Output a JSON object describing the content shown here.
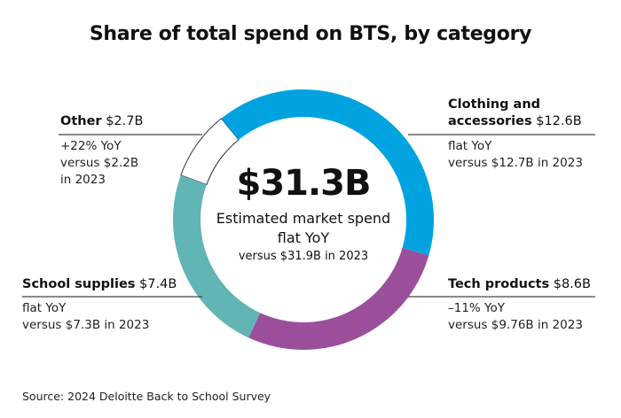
{
  "chart_data": {
    "type": "pie",
    "title": "Share of total spend on BTS, by category",
    "unit": "$B",
    "total": {
      "value": "$31.3B",
      "line1": "Estimated market spend",
      "line2": "flat YoY",
      "line3": "versus $31.9B in 2023"
    },
    "slices": [
      {
        "name": "Clothing and accessories",
        "name_bold_1": "Clothing and",
        "name_bold_2": "accessories",
        "value": 12.6,
        "value_label": "$12.6B",
        "change": "flat YoY",
        "prior": "versus $12.7B in 2023",
        "color": "#00A3E0"
      },
      {
        "name": "Tech products",
        "value": 8.6,
        "value_label": "$8.6B",
        "change": "–11% YoY",
        "prior": "versus $9.76B in 2023",
        "color": "#9B4F9B"
      },
      {
        "name": "School supplies",
        "value": 7.4,
        "value_label": "$7.4B",
        "change": "flat YoY",
        "prior": "versus $7.3B in 2023",
        "color": "#62B5B5"
      },
      {
        "name": "Other",
        "value": 2.7,
        "value_label": "$2.7B",
        "change": "+22% YoY",
        "prior_1": "versus $2.2B",
        "prior_2": "in 2023",
        "color": "#FFFFFF"
      }
    ],
    "source": "Source: 2024 Deloitte Back to School Survey"
  }
}
